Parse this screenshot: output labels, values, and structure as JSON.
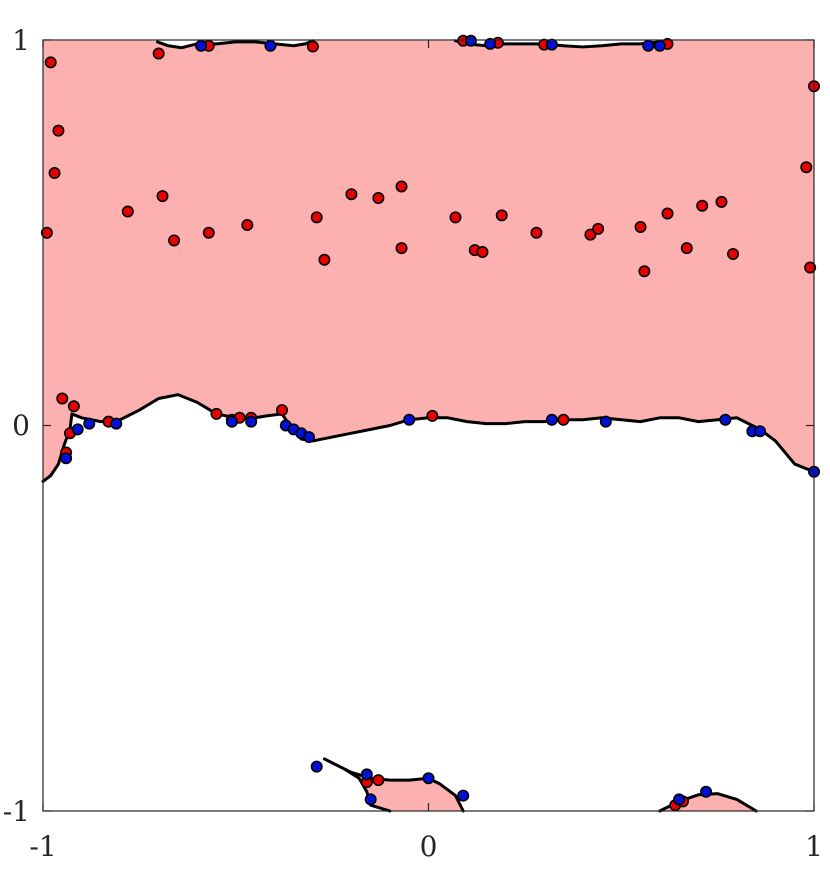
{
  "chart_data": {
    "type": "scatter",
    "title": "",
    "xlabel": "",
    "ylabel": "",
    "xlim": [
      -1,
      1
    ],
    "ylim": [
      -1,
      1
    ],
    "grid": false,
    "x_ticks": [
      -1,
      0,
      1
    ],
    "y_ticks": [
      -1,
      0,
      1
    ],
    "x_tick_labels": [
      "-1",
      "0",
      "1"
    ],
    "y_tick_labels": [
      "-1",
      "0",
      "1"
    ],
    "colors": {
      "region": "#fdb0b0",
      "red_points": "#e60000",
      "blue_points": "#0010d8",
      "boundary": "#000000"
    },
    "regions": [
      {
        "name": "",
        "boundary": [
          [
            -0.703,
            0.995
          ],
          [
            -0.675,
            0.985
          ],
          [
            -0.64,
            0.98
          ],
          [
            -0.6,
            0.99
          ],
          [
            -0.55,
            0.99
          ],
          [
            -0.5,
            0.995
          ],
          [
            -0.45,
            0.995
          ],
          [
            -0.4,
            0.99
          ],
          [
            -0.35,
            0.985
          ],
          [
            -0.32,
            0.99
          ],
          [
            -0.3,
            0.998
          ],
          [
            0.07,
            0.998
          ],
          [
            0.1,
            0.99
          ],
          [
            0.15,
            0.985
          ],
          [
            0.2,
            0.99
          ],
          [
            0.25,
            0.99
          ],
          [
            0.3,
            0.99
          ],
          [
            0.35,
            0.985
          ],
          [
            0.4,
            0.982
          ],
          [
            0.45,
            0.985
          ],
          [
            0.5,
            0.99
          ],
          [
            0.55,
            0.99
          ],
          [
            0.6,
            0.995
          ],
          [
            0.62,
            0.998
          ],
          [
            1.0,
            0.998
          ],
          [
            1.0,
            -0.12
          ],
          [
            0.95,
            -0.1
          ],
          [
            0.9,
            -0.04
          ],
          [
            0.86,
            -0.01
          ],
          [
            0.8,
            0.02
          ],
          [
            0.75,
            0.015
          ],
          [
            0.7,
            0.01
          ],
          [
            0.65,
            0.02
          ],
          [
            0.6,
            0.02
          ],
          [
            0.55,
            0.01
          ],
          [
            0.5,
            0.015
          ],
          [
            0.45,
            0.02
          ],
          [
            0.4,
            0.015
          ],
          [
            0.35,
            0.015
          ],
          [
            0.3,
            0.01
          ],
          [
            0.25,
            0.01
          ],
          [
            0.2,
            0.005
          ],
          [
            0.15,
            0.005
          ],
          [
            0.1,
            0.01
          ],
          [
            0.05,
            0.02
          ],
          [
            0.0,
            0.02
          ],
          [
            -0.05,
            0.015
          ],
          [
            -0.1,
            0.0
          ],
          [
            -0.15,
            -0.01
          ],
          [
            -0.2,
            -0.02
          ],
          [
            -0.25,
            -0.03
          ],
          [
            -0.3,
            -0.04
          ],
          [
            -0.33,
            -0.035
          ],
          [
            -0.36,
            0.0
          ],
          [
            -0.38,
            0.03
          ],
          [
            -0.42,
            0.025
          ],
          [
            -0.45,
            0.02
          ],
          [
            -0.5,
            0.02
          ],
          [
            -0.55,
            0.03
          ],
          [
            -0.6,
            0.06
          ],
          [
            -0.65,
            0.08
          ],
          [
            -0.7,
            0.07
          ],
          [
            -0.75,
            0.04
          ],
          [
            -0.8,
            0.015
          ],
          [
            -0.85,
            0.01
          ],
          [
            -0.9,
            0.02
          ],
          [
            -0.925,
            0.03
          ],
          [
            -0.93,
            -0.01
          ],
          [
            -0.945,
            -0.05
          ],
          [
            -0.96,
            -0.1
          ],
          [
            -0.98,
            -0.13
          ],
          [
            -1.0,
            -0.145
          ],
          [
            -1.0,
            0.998
          ],
          [
            -0.71,
            0.998
          ]
        ]
      },
      {
        "name": "",
        "boundary": [
          [
            -0.27,
            -0.865
          ],
          [
            -0.24,
            -0.88
          ],
          [
            -0.2,
            -0.9
          ],
          [
            -0.15,
            -0.915
          ],
          [
            -0.1,
            -0.92
          ],
          [
            -0.05,
            -0.92
          ],
          [
            0.0,
            -0.915
          ],
          [
            0.03,
            -0.93
          ],
          [
            0.07,
            -0.96
          ],
          [
            0.09,
            -1.0
          ],
          [
            -0.1,
            -1.0
          ],
          [
            -0.15,
            -0.985
          ],
          [
            -0.16,
            -0.95
          ],
          [
            -0.18,
            -0.915
          ],
          [
            -0.22,
            -0.89
          ],
          [
            -0.26,
            -0.87
          ],
          [
            -0.27,
            -0.865
          ]
        ]
      },
      {
        "name": "",
        "boundary": [
          [
            0.6,
            -1.0
          ],
          [
            0.65,
            -0.975
          ],
          [
            0.7,
            -0.958
          ],
          [
            0.75,
            -0.955
          ],
          [
            0.8,
            -0.97
          ],
          [
            0.85,
            -1.0
          ],
          [
            0.6,
            -1.0
          ]
        ]
      }
    ],
    "series": [
      {
        "name": "",
        "color": "#e60000",
        "points": [
          [
            -0.98,
            0.942
          ],
          [
            -0.96,
            0.765
          ],
          [
            -0.97,
            0.655
          ],
          [
            -0.99,
            0.5
          ],
          [
            -0.7,
            0.965
          ],
          [
            -0.57,
            0.985
          ],
          [
            -0.3,
            0.983
          ],
          [
            -0.78,
            0.555
          ],
          [
            -0.69,
            0.595
          ],
          [
            -0.66,
            0.48
          ],
          [
            -0.57,
            0.5
          ],
          [
            -0.47,
            0.52
          ],
          [
            -0.29,
            0.54
          ],
          [
            -0.27,
            0.43
          ],
          [
            -0.2,
            0.6
          ],
          [
            -0.13,
            0.59
          ],
          [
            -0.07,
            0.62
          ],
          [
            -0.07,
            0.46
          ],
          [
            0.07,
            0.54
          ],
          [
            0.09,
            0.998
          ],
          [
            0.12,
            0.455
          ],
          [
            0.14,
            0.45
          ],
          [
            0.18,
            0.993
          ],
          [
            0.19,
            0.545
          ],
          [
            0.28,
            0.5
          ],
          [
            0.3,
            0.988
          ],
          [
            0.42,
            0.495
          ],
          [
            0.44,
            0.51
          ],
          [
            0.55,
            0.515
          ],
          [
            0.56,
            0.4
          ],
          [
            0.62,
            0.55
          ],
          [
            0.62,
            0.99
          ],
          [
            0.67,
            0.46
          ],
          [
            0.71,
            0.57
          ],
          [
            0.76,
            0.58
          ],
          [
            0.79,
            0.445
          ],
          [
            0.98,
            0.67
          ],
          [
            0.99,
            0.41
          ],
          [
            1.0,
            0.88
          ],
          [
            -0.95,
            0.07
          ],
          [
            -0.92,
            0.05
          ],
          [
            -0.94,
            -0.07
          ],
          [
            -0.93,
            -0.02
          ],
          [
            -0.83,
            0.01
          ],
          [
            -0.55,
            0.03
          ],
          [
            -0.51,
            0.015
          ],
          [
            -0.49,
            0.02
          ],
          [
            -0.46,
            0.02
          ],
          [
            -0.38,
            0.04
          ],
          [
            0.01,
            0.025
          ],
          [
            0.35,
            0.015
          ],
          [
            -0.16,
            -0.925
          ],
          [
            -0.13,
            -0.92
          ],
          [
            0.64,
            -0.985
          ],
          [
            0.66,
            -0.975
          ]
        ]
      },
      {
        "name": "",
        "color": "#0010d8",
        "points": [
          [
            -0.59,
            0.985
          ],
          [
            -0.41,
            0.985
          ],
          [
            0.11,
            0.998
          ],
          [
            0.16,
            0.99
          ],
          [
            0.32,
            0.988
          ],
          [
            0.57,
            0.985
          ],
          [
            0.6,
            0.985
          ],
          [
            -0.94,
            -0.085
          ],
          [
            -0.91,
            -0.01
          ],
          [
            -0.88,
            0.005
          ],
          [
            -0.81,
            0.005
          ],
          [
            -0.51,
            0.01
          ],
          [
            -0.46,
            0.01
          ],
          [
            -0.37,
            0.0
          ],
          [
            -0.35,
            -0.01
          ],
          [
            -0.33,
            -0.02
          ],
          [
            -0.31,
            -0.03
          ],
          [
            -0.05,
            0.015
          ],
          [
            0.32,
            0.015
          ],
          [
            0.46,
            0.01
          ],
          [
            0.77,
            0.015
          ],
          [
            0.84,
            -0.015
          ],
          [
            0.86,
            -0.015
          ],
          [
            1.0,
            -0.12
          ],
          [
            -0.29,
            -0.885
          ],
          [
            -0.16,
            -0.905
          ],
          [
            -0.15,
            -0.97
          ],
          [
            0.0,
            -0.915
          ],
          [
            0.09,
            -0.96
          ],
          [
            0.65,
            -0.97
          ],
          [
            0.72,
            -0.95
          ]
        ]
      }
    ]
  }
}
